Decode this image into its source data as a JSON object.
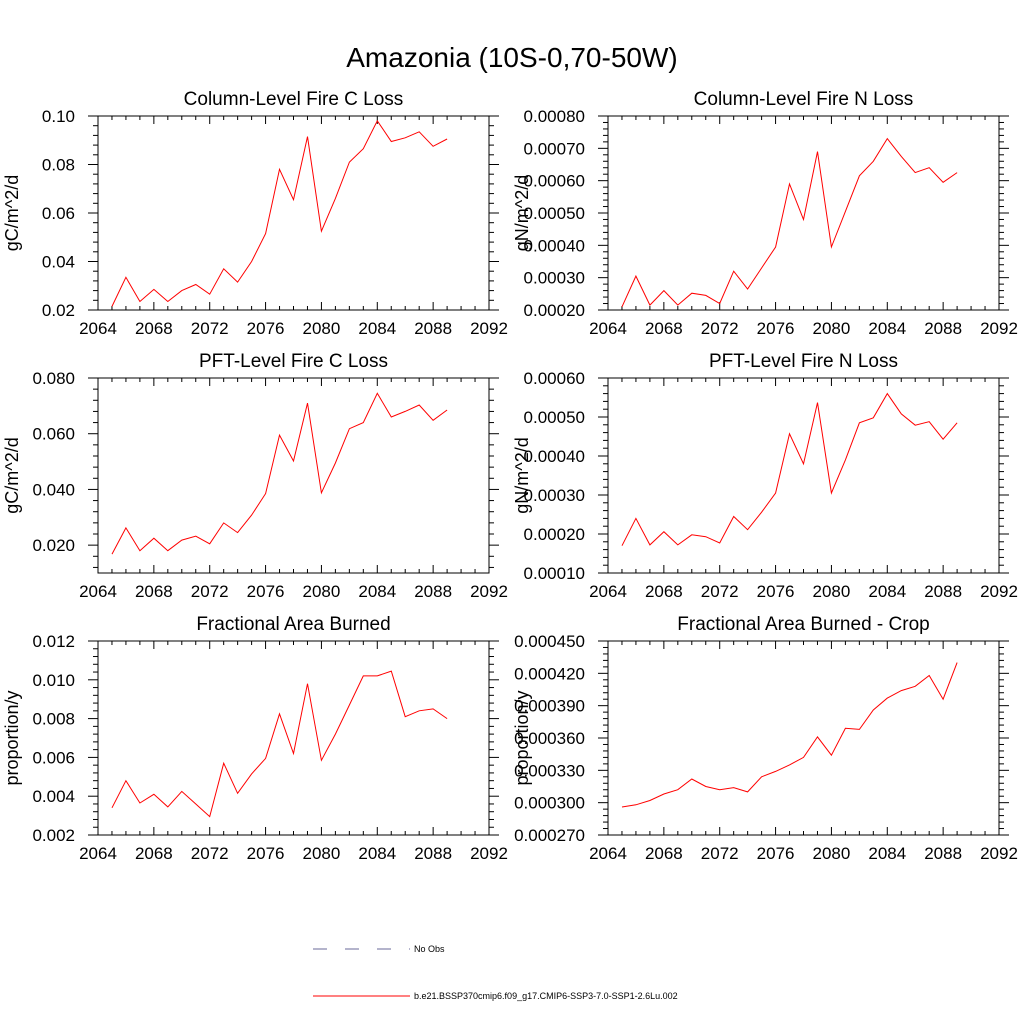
{
  "title": "Amazonia (10S-0,70-50W)",
  "legend": {
    "no_obs": "No Obs",
    "model": "b.e21.BSSP370cmip6.f09_g17.CMIP6-SSP3-7.0-SSP1-2.6Lu.002",
    "no_obs_color": "#6a6a9a",
    "model_color": "#ff0000"
  },
  "chart_data": [
    {
      "type": "line",
      "title": "Column-Level Fire C Loss",
      "ylabel": "gC/m^2/d",
      "xlim": [
        2064,
        2092
      ],
      "ylim": [
        0.02,
        0.1
      ],
      "xticks": [
        2064,
        2068,
        2072,
        2076,
        2080,
        2084,
        2088,
        2092
      ],
      "yticks": [
        "0.02",
        "0.04",
        "0.06",
        "0.08",
        "0.10"
      ],
      "x": [
        2065,
        2066,
        2067,
        2068,
        2069,
        2070,
        2071,
        2072,
        2073,
        2074,
        2075,
        2076,
        2077,
        2078,
        2079,
        2080,
        2081,
        2082,
        2083,
        2084,
        2085,
        2086,
        2087,
        2088,
        2089
      ],
      "series": [
        {
          "values": [
            0.0215,
            0.0335,
            0.0235,
            0.0285,
            0.0235,
            0.028,
            0.0305,
            0.0265,
            0.037,
            0.0315,
            0.04,
            0.0515,
            0.078,
            0.0655,
            0.0915,
            0.0525,
            0.066,
            0.081,
            0.0865,
            0.098,
            0.0895,
            0.091,
            0.0935,
            0.0875,
            0.0905
          ]
        }
      ]
    },
    {
      "type": "line",
      "title": "Column-Level Fire N Loss",
      "ylabel": "gN/m^2/d",
      "xlim": [
        2064,
        2092
      ],
      "ylim": [
        0.0002,
        0.0008
      ],
      "xticks": [
        2064,
        2068,
        2072,
        2076,
        2080,
        2084,
        2088,
        2092
      ],
      "yticks": [
        "0.00020",
        "0.00030",
        "0.00040",
        "0.00050",
        "0.00060",
        "0.00070",
        "0.00080"
      ],
      "x": [
        2065,
        2066,
        2067,
        2068,
        2069,
        2070,
        2071,
        2072,
        2073,
        2074,
        2075,
        2076,
        2077,
        2078,
        2079,
        2080,
        2081,
        2082,
        2083,
        2084,
        2085,
        2086,
        2087,
        2088,
        2089
      ],
      "series": [
        {
          "values": [
            0.00021,
            0.000305,
            0.000215,
            0.00026,
            0.000215,
            0.000252,
            0.000245,
            0.00022,
            0.00032,
            0.000265,
            0.00033,
            0.000395,
            0.00059,
            0.00048,
            0.00069,
            0.000395,
            0.000505,
            0.000615,
            0.00066,
            0.00073,
            0.000675,
            0.000625,
            0.00064,
            0.000595,
            0.000625
          ]
        }
      ]
    },
    {
      "type": "line",
      "title": "PFT-Level Fire C Loss",
      "ylabel": "gC/m^2/d",
      "xlim": [
        2064,
        2092
      ],
      "ylim": [
        0.01,
        0.08
      ],
      "xticks": [
        2064,
        2068,
        2072,
        2076,
        2080,
        2084,
        2088,
        2092
      ],
      "yticks": [
        "0.020",
        "0.040",
        "0.060",
        "0.080"
      ],
      "x": [
        2065,
        2066,
        2067,
        2068,
        2069,
        2070,
        2071,
        2072,
        2073,
        2074,
        2075,
        2076,
        2077,
        2078,
        2079,
        2080,
        2081,
        2082,
        2083,
        2084,
        2085,
        2086,
        2087,
        2088,
        2089
      ],
      "series": [
        {
          "values": [
            0.0168,
            0.0262,
            0.018,
            0.0225,
            0.018,
            0.0218,
            0.0232,
            0.0205,
            0.028,
            0.0245,
            0.0308,
            0.0385,
            0.0595,
            0.0502,
            0.071,
            0.0388,
            0.0495,
            0.0618,
            0.064,
            0.0745,
            0.066,
            0.068,
            0.0703,
            0.0648,
            0.0685
          ]
        }
      ]
    },
    {
      "type": "line",
      "title": "PFT-Level Fire N Loss",
      "ylabel": "gN/m^2/d",
      "xlim": [
        2064,
        2092
      ],
      "ylim": [
        0.0001,
        0.0006
      ],
      "xticks": [
        2064,
        2068,
        2072,
        2076,
        2080,
        2084,
        2088,
        2092
      ],
      "yticks": [
        "0.00010",
        "0.00020",
        "0.00030",
        "0.00040",
        "0.00050",
        "0.00060"
      ],
      "x": [
        2065,
        2066,
        2067,
        2068,
        2069,
        2070,
        2071,
        2072,
        2073,
        2074,
        2075,
        2076,
        2077,
        2078,
        2079,
        2080,
        2081,
        2082,
        2083,
        2084,
        2085,
        2086,
        2087,
        2088,
        2089
      ],
      "series": [
        {
          "values": [
            0.00017,
            0.00024,
            0.000172,
            0.000206,
            0.000172,
            0.000198,
            0.000193,
            0.000177,
            0.000245,
            0.000211,
            0.000256,
            0.000305,
            0.000457,
            0.00038,
            0.000537,
            0.000305,
            0.00039,
            0.000485,
            0.000498,
            0.00056,
            0.000508,
            0.000479,
            0.000488,
            0.000443,
            0.000485
          ]
        }
      ]
    },
    {
      "type": "line",
      "title": "Fractional Area Burned",
      "ylabel": "proportion/y",
      "xlim": [
        2064,
        2092
      ],
      "ylim": [
        0.002,
        0.012
      ],
      "xticks": [
        2064,
        2068,
        2072,
        2076,
        2080,
        2084,
        2088,
        2092
      ],
      "yticks": [
        "0.002",
        "0.004",
        "0.006",
        "0.008",
        "0.010",
        "0.012"
      ],
      "x": [
        2065,
        2066,
        2067,
        2068,
        2069,
        2070,
        2071,
        2072,
        2073,
        2074,
        2075,
        2076,
        2077,
        2078,
        2079,
        2080,
        2081,
        2082,
        2083,
        2084,
        2085,
        2086,
        2087,
        2088,
        2089
      ],
      "series": [
        {
          "values": [
            0.0034,
            0.0048,
            0.00365,
            0.0041,
            0.00345,
            0.00425,
            0.0036,
            0.00295,
            0.0057,
            0.00415,
            0.00515,
            0.00595,
            0.00825,
            0.0062,
            0.0098,
            0.00585,
            0.0072,
            0.0087,
            0.0102,
            0.0102,
            0.01045,
            0.0081,
            0.0084,
            0.0085,
            0.008
          ]
        }
      ]
    },
    {
      "type": "line",
      "title": "Fractional Area Burned - Crop",
      "ylabel": "proportion/y",
      "xlim": [
        2064,
        2092
      ],
      "ylim": [
        0.00027,
        0.00045
      ],
      "xticks": [
        2064,
        2068,
        2072,
        2076,
        2080,
        2084,
        2088,
        2092
      ],
      "yticks": [
        "0.000270",
        "0.000300",
        "0.000330",
        "0.000360",
        "0.000390",
        "0.000420",
        "0.000450"
      ],
      "x": [
        2065,
        2066,
        2067,
        2068,
        2069,
        2070,
        2071,
        2072,
        2073,
        2074,
        2075,
        2076,
        2077,
        2078,
        2079,
        2080,
        2081,
        2082,
        2083,
        2084,
        2085,
        2086,
        2087,
        2088,
        2089
      ],
      "series": [
        {
          "values": [
            0.000296,
            0.000298,
            0.000302,
            0.000308,
            0.000312,
            0.000322,
            0.000315,
            0.000312,
            0.000314,
            0.00031,
            0.000324,
            0.000329,
            0.000335,
            0.000342,
            0.000361,
            0.000344,
            0.000369,
            0.000368,
            0.000386,
            0.000397,
            0.000404,
            0.000408,
            0.000418,
            0.000396,
            0.00043
          ]
        }
      ]
    }
  ]
}
